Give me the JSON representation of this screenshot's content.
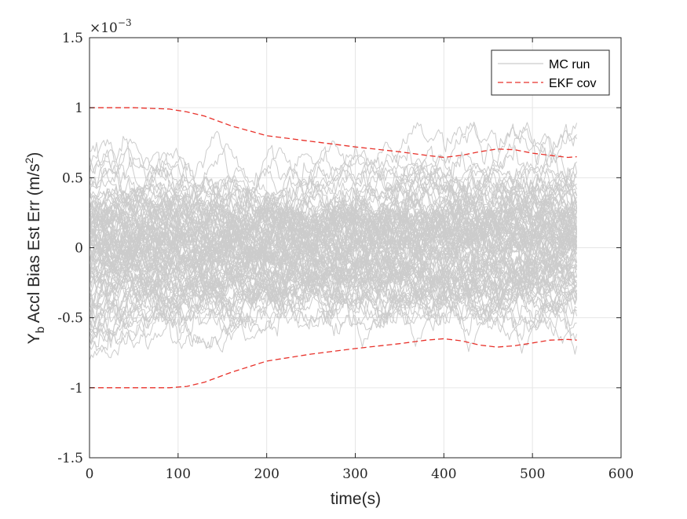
{
  "chart_data": {
    "type": "line",
    "xlabel": "time(s)",
    "ylabel": {
      "main": "Y",
      "sub": "b",
      "rest": " Accl Bias Est Err (m/s",
      "sup": "2",
      "close": ")"
    },
    "y_exponent": {
      "base": "×10",
      "power": "−3"
    },
    "xlim": [
      0,
      600
    ],
    "ylim": [
      -1.5,
      1.5
    ],
    "x_ticks": [
      0,
      100,
      200,
      300,
      400,
      500,
      600
    ],
    "x_tick_labels": [
      "0",
      "100",
      "200",
      "300",
      "400",
      "500",
      "600"
    ],
    "y_ticks": [
      -1.5,
      -1,
      -0.5,
      0,
      0.5,
      1,
      1.5
    ],
    "y_tick_labels": [
      "-1.5",
      "-1",
      "-0.5",
      "0",
      "0.5",
      "1",
      "1.5"
    ],
    "grid": true,
    "legend_position": "top-right",
    "legend": [
      {
        "label": "MC run",
        "color": "#cccccc",
        "style": "solid"
      },
      {
        "label": "EKF cov",
        "color": "#e8312a",
        "style": "dashed"
      }
    ],
    "colors": {
      "mc_run": "#cccccc",
      "ekf_cov": "#e8312a",
      "grid": "#e6e6e6",
      "axis": "#262626"
    },
    "mc_runs": {
      "count": 100,
      "x_start": 0,
      "x_end": 550,
      "x_step": 2,
      "typical_spread_sigma": 0.25
    },
    "series": [
      {
        "name": "EKF cov",
        "x": [
          0,
          50,
          90,
          110,
          130,
          160,
          200,
          250,
          300,
          350,
          380,
          400,
          420,
          440,
          460,
          480,
          500,
          520,
          540,
          550
        ],
        "y_upper": [
          1.0,
          1.0,
          0.99,
          0.97,
          0.94,
          0.87,
          0.8,
          0.76,
          0.72,
          0.685,
          0.66,
          0.645,
          0.66,
          0.685,
          0.705,
          0.7,
          0.675,
          0.66,
          0.645,
          0.65
        ],
        "y_lower": [
          -1.0,
          -1.0,
          -1.0,
          -0.99,
          -0.96,
          -0.89,
          -0.81,
          -0.76,
          -0.72,
          -0.685,
          -0.66,
          -0.65,
          -0.665,
          -0.695,
          -0.71,
          -0.7,
          -0.68,
          -0.66,
          -0.655,
          -0.66
        ]
      }
    ]
  }
}
